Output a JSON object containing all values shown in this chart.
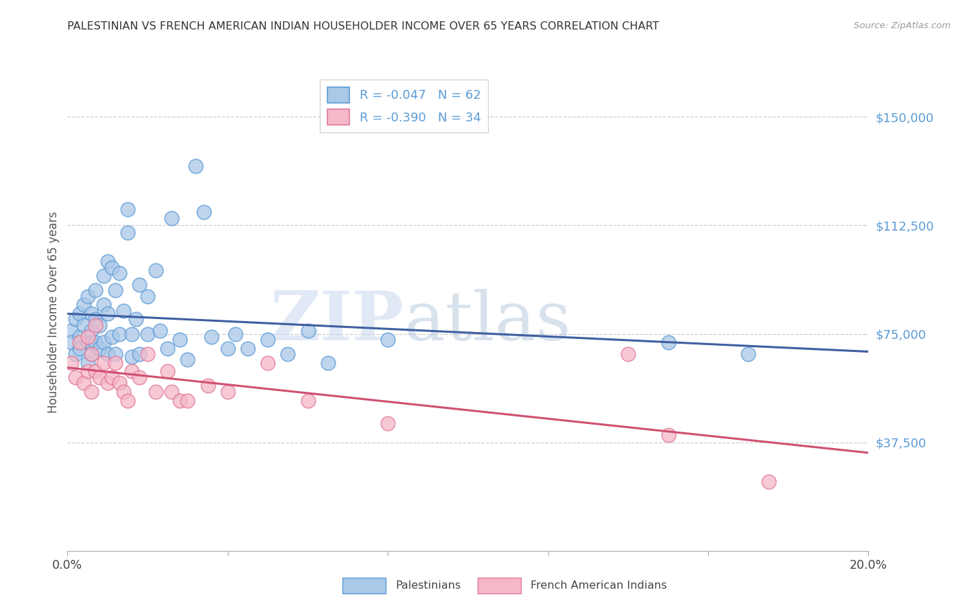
{
  "title": "PALESTINIAN VS FRENCH AMERICAN INDIAN HOUSEHOLDER INCOME OVER 65 YEARS CORRELATION CHART",
  "source": "Source: ZipAtlas.com",
  "ylabel": "Householder Income Over 65 years",
  "xlim": [
    0.0,
    0.2
  ],
  "ylim": [
    0,
    165000
  ],
  "yticks": [
    37500,
    75000,
    112500,
    150000
  ],
  "ytick_labels": [
    "$37,500",
    "$75,000",
    "$112,500",
    "$150,000"
  ],
  "xticks": [
    0.0,
    0.04,
    0.08,
    0.12,
    0.16,
    0.2
  ],
  "xtick_labels": [
    "0.0%",
    "",
    "",
    "",
    "",
    "20.0%"
  ],
  "watermark_zip": "ZIP",
  "watermark_atlas": "atlas",
  "palestinian_color": "#aac8e8",
  "palestinian_edge": "#5b9bd5",
  "french_color": "#f5b8c8",
  "french_edge": "#e07898",
  "trend_blue": "#3f5fa0",
  "trend_pink": "#d05070",
  "tick_label_color": "#5b9bd5",
  "background_color": "#ffffff",
  "grid_color": "#cccccc",
  "palestinians_x": [
    0.001,
    0.001,
    0.002,
    0.002,
    0.003,
    0.003,
    0.003,
    0.004,
    0.004,
    0.005,
    0.005,
    0.005,
    0.006,
    0.006,
    0.006,
    0.006,
    0.007,
    0.007,
    0.007,
    0.008,
    0.008,
    0.009,
    0.009,
    0.009,
    0.01,
    0.01,
    0.01,
    0.011,
    0.011,
    0.012,
    0.012,
    0.013,
    0.013,
    0.014,
    0.015,
    0.015,
    0.016,
    0.016,
    0.017,
    0.018,
    0.018,
    0.02,
    0.02,
    0.022,
    0.023,
    0.025,
    0.026,
    0.028,
    0.03,
    0.032,
    0.034,
    0.036,
    0.04,
    0.042,
    0.045,
    0.05,
    0.055,
    0.06,
    0.065,
    0.08,
    0.15,
    0.17
  ],
  "palestinians_y": [
    76000,
    72000,
    80000,
    68000,
    82000,
    74000,
    70000,
    85000,
    78000,
    88000,
    72000,
    65000,
    82000,
    76000,
    72000,
    68000,
    90000,
    80000,
    72000,
    78000,
    70000,
    95000,
    85000,
    72000,
    100000,
    82000,
    68000,
    98000,
    74000,
    90000,
    68000,
    96000,
    75000,
    83000,
    118000,
    110000,
    75000,
    67000,
    80000,
    92000,
    68000,
    88000,
    75000,
    97000,
    76000,
    70000,
    115000,
    73000,
    66000,
    133000,
    117000,
    74000,
    70000,
    75000,
    70000,
    73000,
    68000,
    76000,
    65000,
    73000,
    72000,
    68000
  ],
  "french_x": [
    0.001,
    0.002,
    0.003,
    0.004,
    0.005,
    0.005,
    0.006,
    0.006,
    0.007,
    0.007,
    0.008,
    0.009,
    0.01,
    0.011,
    0.012,
    0.013,
    0.014,
    0.015,
    0.016,
    0.018,
    0.02,
    0.022,
    0.025,
    0.026,
    0.028,
    0.03,
    0.035,
    0.04,
    0.05,
    0.06,
    0.08,
    0.14,
    0.15,
    0.175
  ],
  "french_y": [
    65000,
    60000,
    72000,
    58000,
    74000,
    62000,
    68000,
    55000,
    78000,
    62000,
    60000,
    65000,
    58000,
    60000,
    65000,
    58000,
    55000,
    52000,
    62000,
    60000,
    68000,
    55000,
    62000,
    55000,
    52000,
    52000,
    57000,
    55000,
    65000,
    52000,
    44000,
    68000,
    40000,
    24000
  ],
  "R_blue": -0.047,
  "N_blue": 62,
  "R_pink": -0.39,
  "N_pink": 34
}
